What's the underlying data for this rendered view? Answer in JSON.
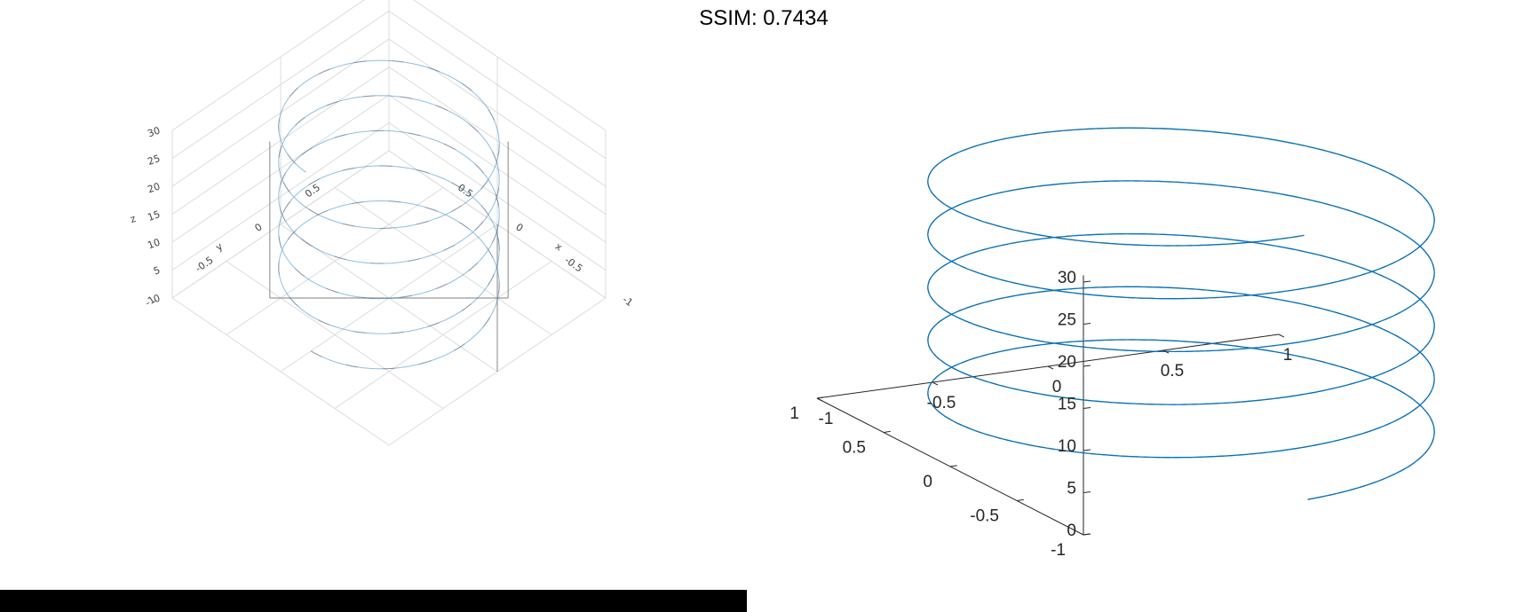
{
  "figure": {
    "title": "SSIM: 0.7434",
    "colors": {
      "series1": "#0072BD",
      "series2": "#D95319",
      "axis": "#262626",
      "bar": "#000000"
    }
  },
  "chart_data": [
    {
      "type": "line",
      "subtype": "3d-helix",
      "view": "tilted (rendered reconstruction)",
      "title": "",
      "xlabel": "x",
      "ylabel": "y",
      "zlabel": "z",
      "xlim": [
        -1,
        1
      ],
      "ylim": [
        -1,
        1
      ],
      "zlim": [
        0,
        30
      ],
      "x_ticks": [
        "-1",
        "-0.5",
        "0",
        "0.5"
      ],
      "y_ticks": [
        "-1",
        "-0.5",
        "0",
        "0.5"
      ],
      "z_ticks": [
        "0",
        "5",
        "10",
        "15",
        "20",
        "25",
        "30"
      ],
      "grid": true,
      "series": [
        {
          "style": "solid",
          "x": "sin(t)",
          "y": "cos(t)",
          "z": "t",
          "t_range": [
            0,
            31.4
          ]
        },
        {
          "style": "dashed",
          "x": "sin(t)",
          "y": "cos(t)",
          "z": "t",
          "t_range": [
            0,
            31.4
          ]
        }
      ]
    },
    {
      "type": "line",
      "subtype": "3d-helix",
      "view": "default 3-D (reference)",
      "title": "",
      "xlim": [
        -1,
        1
      ],
      "ylim": [
        -1,
        1
      ],
      "zlim": [
        0,
        30
      ],
      "x_ticks": [
        "-1",
        "-0.5",
        "0",
        "0.5",
        "1"
      ],
      "y_ticks": [
        "-1",
        "-0.5",
        "0",
        "0.5",
        "1"
      ],
      "z_ticks": [
        "0",
        "5",
        "10",
        "15",
        "20",
        "25",
        "30"
      ],
      "grid": false,
      "series": [
        {
          "style": "solid",
          "x": "sin(t)",
          "y": "cos(t)",
          "z": "t",
          "t_range": [
            0,
            31.4
          ]
        },
        {
          "style": "dashed",
          "x": "sin(t)",
          "y": "cos(t)",
          "z": "t",
          "t_range": [
            0,
            31.4
          ]
        }
      ]
    }
  ]
}
